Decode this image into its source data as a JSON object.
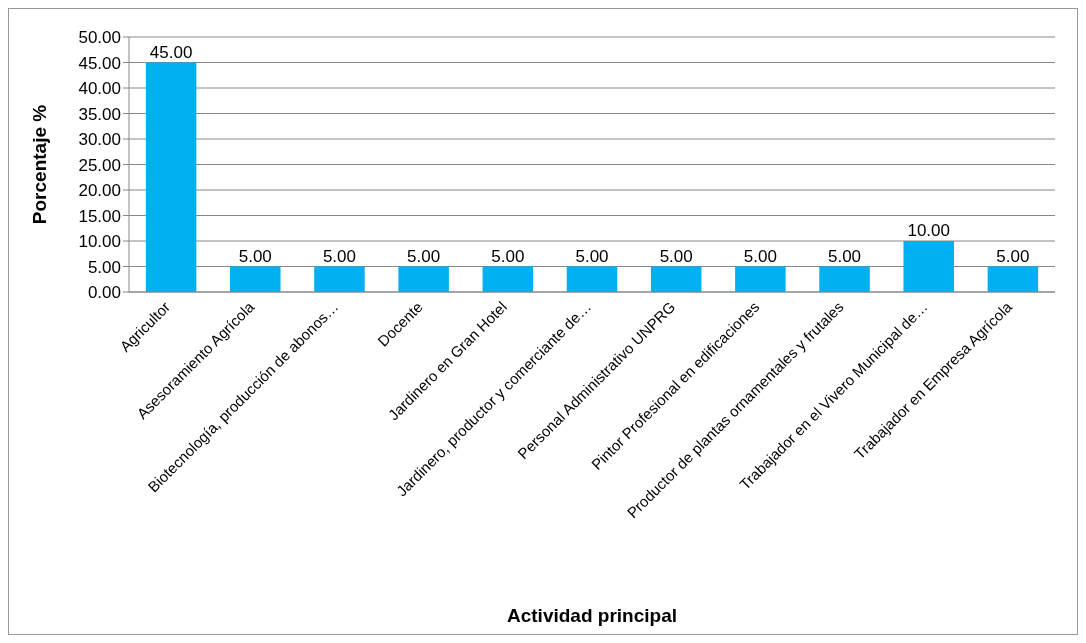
{
  "chart_data": {
    "type": "bar",
    "xlabel": "Actividad principal",
    "ylabel": "Porcentaje %",
    "categories": [
      "Agricultor",
      "Asesoramiento Agrícola",
      "Biotecnología, producción de abonos…",
      "Docente",
      "Jardinero en Gran Hotel",
      "Jardinero, productor y comerciante de…",
      "Personal Administrativo UNPRG",
      "Pintor Profesional en edificaciones",
      "Productor de plantas ornamentales y frutales",
      "Trabajador en el Vivero Municipal de…",
      "Trabajador en Empresa Agrícola"
    ],
    "values": [
      45,
      5,
      5,
      5,
      5,
      5,
      5,
      5,
      5,
      10,
      5
    ],
    "value_labels": [
      "45.00",
      "5.00",
      "5.00",
      "5.00",
      "5.00",
      "5.00",
      "5.00",
      "5.00",
      "5.00",
      "10.00",
      "5.00"
    ],
    "color": "#00b0f0",
    "ylim": [
      0,
      50
    ],
    "yticks": [
      {
        "value": 0,
        "label": "0.00"
      },
      {
        "value": 5,
        "label": "5.00"
      },
      {
        "value": 10,
        "label": "10.00"
      },
      {
        "value": 15,
        "label": "15.00"
      },
      {
        "value": 20,
        "label": "20.00"
      },
      {
        "value": 25,
        "label": "25.00"
      },
      {
        "value": 30,
        "label": "30.00"
      },
      {
        "value": 35,
        "label": "35.00"
      },
      {
        "value": 40,
        "label": "40.00"
      },
      {
        "value": 45,
        "label": "45.00"
      },
      {
        "value": 50,
        "label": "50.00"
      }
    ],
    "grid": "y"
  }
}
